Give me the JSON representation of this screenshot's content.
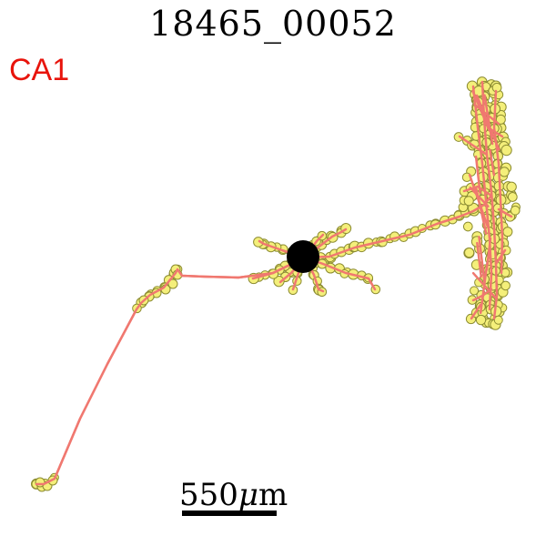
{
  "title": "18465_00052",
  "region_label": "CA1",
  "scale_bar": {
    "value": "550",
    "unit_prefix": "μ",
    "unit_suffix": "m"
  },
  "colors": {
    "region_label": "#e8140c",
    "neurite_line": "#f07870",
    "node_fill": "#f4ef7a",
    "node_stroke": "#8c8c32",
    "soma": "#000000",
    "scale_bar": "#000000"
  }
}
